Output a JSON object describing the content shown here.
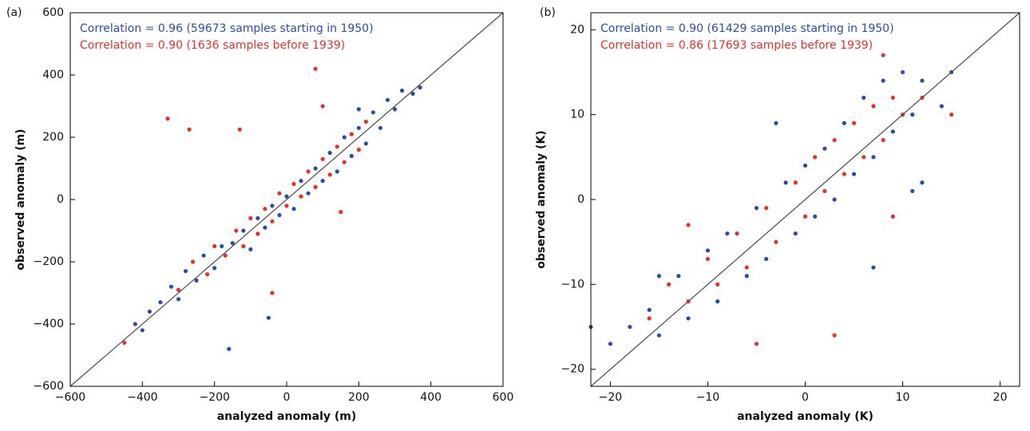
{
  "chart_data": [
    {
      "type": "scatter",
      "panel_label": "(a)",
      "xlabel": "analyzed anomaly (m)",
      "ylabel": "observed anomaly (m)",
      "xlim": [
        -600,
        600
      ],
      "ylim": [
        -600,
        600
      ],
      "xticks": [
        {
          "value": -600,
          "label": "−600"
        },
        {
          "value": -400,
          "label": "−400"
        },
        {
          "value": -200,
          "label": "−200"
        },
        0,
        200,
        400,
        600
      ],
      "yticks": [
        {
          "value": -600,
          "label": "−600"
        },
        {
          "value": -400,
          "label": "−400"
        },
        {
          "value": -200,
          "label": "−200"
        },
        0,
        200,
        400,
        600
      ],
      "annotations": [
        {
          "text": "Correlation =  0.96 (59673 samples starting in 1950)",
          "color": "#2a4ea6"
        },
        {
          "text": "Correlation =  0.90 (1636 samples before 1939)",
          "color": "#e8302a"
        }
      ],
      "series": [
        {
          "color": "#2a4ea6",
          "x": [
            -420,
            -380,
            -350,
            -320,
            -300,
            -280,
            -250,
            -230,
            -200,
            -180,
            -160,
            -150,
            -120,
            -100,
            -80,
            -60,
            -40,
            -20,
            0,
            20,
            40,
            60,
            80,
            100,
            120,
            140,
            160,
            180,
            200,
            220,
            240,
            260,
            280,
            300,
            320,
            350,
            370,
            -50,
            200,
            -400
          ],
          "y": [
            -400,
            -360,
            -330,
            -280,
            -320,
            -230,
            -260,
            -180,
            -220,
            -150,
            -480,
            -140,
            -100,
            -160,
            -60,
            -90,
            -20,
            -50,
            10,
            -30,
            60,
            20,
            100,
            60,
            150,
            90,
            200,
            140,
            230,
            180,
            280,
            230,
            320,
            290,
            350,
            340,
            360,
            -380,
            290,
            -420
          ]
        },
        {
          "color": "#e8302a",
          "x": [
            -300,
            -260,
            -220,
            -200,
            -170,
            -140,
            -120,
            -100,
            -80,
            -60,
            -40,
            -20,
            0,
            20,
            40,
            60,
            80,
            100,
            120,
            140,
            160,
            180,
            200,
            220,
            -330,
            -270,
            -130,
            80,
            100,
            -450,
            -40,
            150
          ],
          "y": [
            -290,
            -200,
            -240,
            -150,
            -180,
            -100,
            -150,
            -60,
            -110,
            -30,
            -70,
            20,
            -20,
            50,
            10,
            90,
            40,
            130,
            80,
            170,
            120,
            210,
            160,
            250,
            260,
            225,
            225,
            420,
            300,
            -460,
            -300,
            -40
          ]
        }
      ]
    },
    {
      "type": "scatter",
      "panel_label": "(b)",
      "xlabel": "analyzed anomaly (K)",
      "ylabel": "observed anomaly (K)",
      "xlim": [
        -22,
        22
      ],
      "ylim": [
        -22,
        22
      ],
      "xticks": [
        {
          "value": -20,
          "label": "−20"
        },
        {
          "value": -10,
          "label": "−10"
        },
        0,
        10,
        20
      ],
      "yticks": [
        {
          "value": -20,
          "label": "−20"
        },
        {
          "value": -10,
          "label": "−10"
        },
        0,
        10,
        20
      ],
      "annotations": [
        {
          "text": "Correlation =  0.90 (61429 samples starting in 1950)",
          "color": "#2a4ea6"
        },
        {
          "text": "Correlation =  0.86 (17693 samples before 1939)",
          "color": "#e8302a"
        }
      ],
      "series": [
        {
          "color": "#2a4ea6",
          "x": [
            -22,
            -20,
            -18,
            -16,
            -15,
            -13,
            -12,
            -10,
            -9,
            -8,
            -6,
            -5,
            -4,
            -2,
            -1,
            0,
            1,
            2,
            3,
            4,
            5,
            6,
            7,
            8,
            9,
            10,
            11,
            12,
            12,
            14,
            15,
            -3,
            7,
            11,
            -15
          ],
          "y": [
            -15,
            -17,
            -15,
            -13,
            -16,
            -9,
            -14,
            -6,
            -12,
            -4,
            -9,
            -1,
            -7,
            2,
            -4,
            4,
            -2,
            6,
            0,
            9,
            3,
            12,
            5,
            14,
            8,
            15,
            10,
            14,
            2,
            11,
            15,
            9,
            -8,
            1,
            -9
          ]
        },
        {
          "color": "#e8302a",
          "x": [
            -16,
            -14,
            -12,
            -10,
            -9,
            -7,
            -6,
            -4,
            -3,
            -1,
            0,
            1,
            2,
            3,
            4,
            5,
            6,
            7,
            8,
            9,
            10,
            12,
            15,
            8,
            -5,
            3,
            -12,
            9
          ],
          "y": [
            -14,
            -10,
            -12,
            -7,
            -10,
            -4,
            -8,
            -1,
            -5,
            2,
            -2,
            5,
            1,
            7,
            3,
            9,
            5,
            11,
            7,
            12,
            10,
            12,
            10,
            17,
            -17,
            -16,
            -3,
            -2
          ]
        }
      ]
    }
  ]
}
